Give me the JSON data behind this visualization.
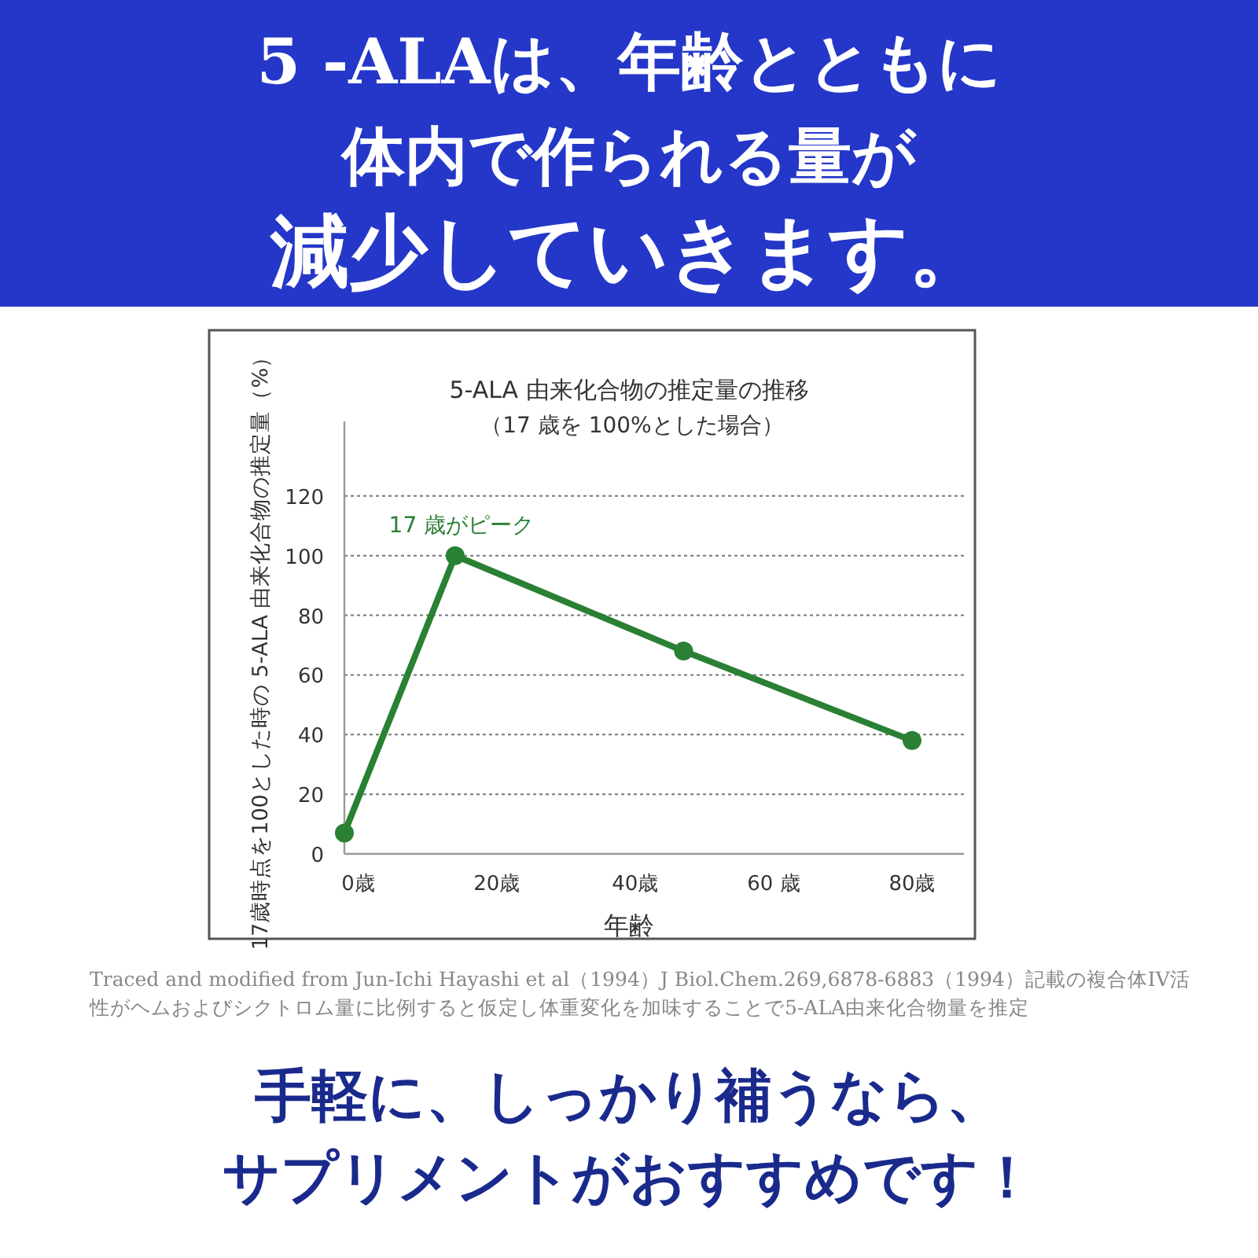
{
  "chart_data": {
    "type": "line",
    "title": "5-ALA 由来化合物の推定量の推移",
    "subtitle": "（17 歳を 100%とした場合）",
    "xlabel": "年齢",
    "ylabel": "17歳時点を100とした時の 5-ALA 由来化合物の推定量（%）",
    "annotations": [
      "5 -ALAは、年齢とともに",
      "体内で作られる量が",
      "減少していきます。",
      "Traced and modified from Jun-Ichi Hayashi et al（1994）J Biol.Chem.269,6878-6883（1994）記載の複合体IV活性がヘムおよびシクトロム量に比例すると仮定し体重変化を加味することで5-ALA由来化合物量を推定",
      "手軽に、しっかり補うなら、",
      "サプリメントがおすすめです！",
      {
        "text": "17 歳がピーク",
        "x": 14,
        "y": 100
      }
    ],
    "x": [
      -2,
      14,
      47,
      80
    ],
    "series": [
      {
        "color": "#2a8034",
        "values": [
          7,
          100,
          68,
          38
        ]
      }
    ],
    "xlim": [
      -2,
      87.5
    ],
    "ylim": [
      0,
      145
    ],
    "xticks": [
      {
        "value": 0,
        "label": "0歳"
      },
      {
        "value": 20,
        "label": "20歳"
      },
      {
        "value": 40,
        "label": "40歳"
      },
      {
        "value": 60,
        "label": "60 歳"
      },
      {
        "value": 80,
        "label": "80歳"
      }
    ],
    "yticks": [
      0,
      20,
      40,
      60,
      80,
      100,
      120
    ],
    "grid": "y",
    "marker": "circle"
  }
}
